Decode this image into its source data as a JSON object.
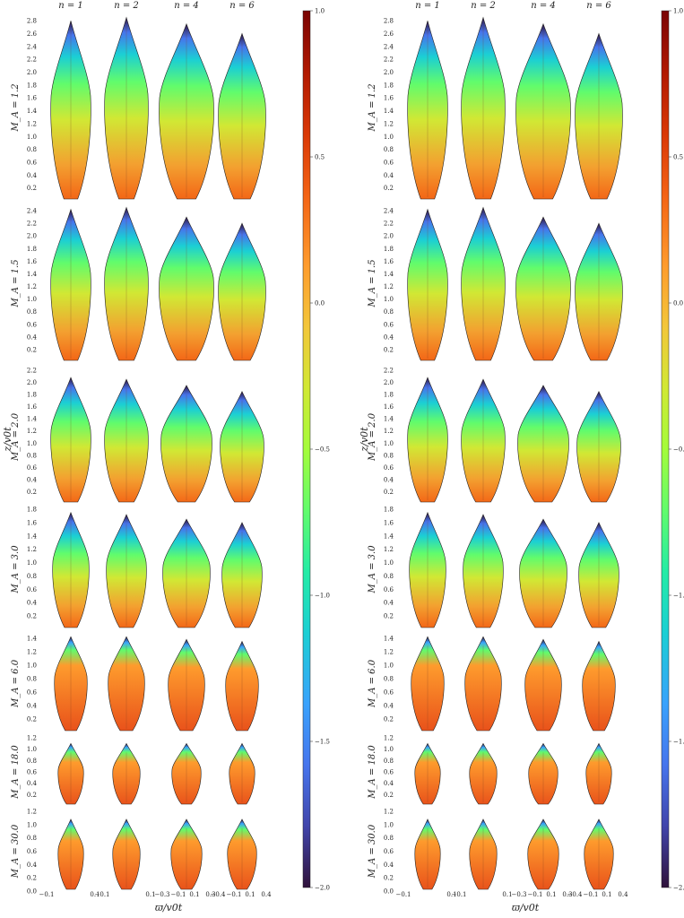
{
  "figure": {
    "column_labels": [
      "n = 1",
      "n = 2",
      "n = 4",
      "n = 6"
    ],
    "row_labels": [
      "M_A = 1.2",
      "M_A = 1.5",
      "M_A = 2.0",
      "M_A = 3.0",
      "M_A = 6.0",
      "M_A = 18.0",
      "M_A = 30.0"
    ],
    "ylabel": "z/v0t",
    "xlabel": "ϖ/v0t",
    "x_tick_groups": [
      [
        "−0.1",
        "0.1"
      ],
      [
        "−0.1",
        "0.1"
      ],
      [
        "−0.3",
        "−0.1",
        "0.1",
        "0.3"
      ],
      [
        "−0.4",
        "−0.1",
        "0.1",
        "0.4"
      ]
    ],
    "colorbar": {
      "ticks": [
        "1.0",
        "0.5",
        "0.0",
        "−0.5",
        "−1.0",
        "−1.5",
        "−2.0"
      ],
      "range": [
        -2.0,
        1.0
      ],
      "colormap": "turbo"
    }
  },
  "chart_data": [
    {
      "type": "heatmap",
      "panel": "left",
      "title": "",
      "xlabel": "ϖ/v0t",
      "ylabel": "z/v0t",
      "columns": [
        "n = 1",
        "n = 2",
        "n = 4",
        "n = 6"
      ],
      "rows": [
        {
          "label": "M_A = 1.2",
          "ylim": [
            0,
            2.9
          ],
          "y_ticks": [
            "0.2",
            "0.4",
            "0.6",
            "0.8",
            "1.0",
            "1.2",
            "1.4",
            "1.6",
            "1.8",
            "2.0",
            "2.2",
            "2.4",
            "2.6",
            "2.8"
          ],
          "tip_heights": [
            2.8,
            2.85,
            2.75,
            2.6
          ]
        },
        {
          "label": "M_A = 1.5",
          "ylim": [
            0,
            2.5
          ],
          "y_ticks": [
            "0.2",
            "0.4",
            "0.6",
            "0.8",
            "1.0",
            "1.2",
            "1.4",
            "1.6",
            "1.8",
            "2.0",
            "2.2",
            "2.4"
          ],
          "tip_heights": [
            2.42,
            2.45,
            2.3,
            2.2
          ]
        },
        {
          "label": "M_A = 2.0",
          "ylim": [
            0,
            2.2
          ],
          "y_ticks": [
            "0.2",
            "0.4",
            "0.6",
            "0.8",
            "1.0",
            "1.2",
            "1.4",
            "1.6",
            "1.8",
            "2.0",
            "2.2"
          ],
          "tip_heights": [
            2.08,
            2.05,
            1.95,
            1.85
          ]
        },
        {
          "label": "M_A = 3.0",
          "ylim": [
            0,
            1.8
          ],
          "y_ticks": [
            "0.2",
            "0.4",
            "0.6",
            "0.8",
            "1.0",
            "1.2",
            "1.4",
            "1.6",
            "1.8"
          ],
          "tip_heights": [
            1.75,
            1.72,
            1.65,
            1.6
          ]
        },
        {
          "label": "M_A = 6.0",
          "ylim": [
            0,
            1.45
          ],
          "y_ticks": [
            "0.2",
            "0.4",
            "0.6",
            "0.8",
            "1.0",
            "1.2",
            "1.4"
          ],
          "tip_heights": [
            1.42,
            1.42,
            1.38,
            1.35
          ]
        },
        {
          "label": "M_A = 18.0",
          "ylim": [
            0,
            1.2
          ],
          "y_ticks": [
            "0.2",
            "0.4",
            "0.6",
            "0.8",
            "1.0",
            "1.2"
          ],
          "tip_heights": [
            1.1,
            1.1,
            1.1,
            1.1
          ]
        },
        {
          "label": "M_A = 30.0",
          "ylim": [
            0,
            1.2
          ],
          "y_ticks": [
            "0.0",
            "0.2",
            "0.4",
            "0.6",
            "0.8",
            "1.0",
            "1.2"
          ],
          "tip_heights": [
            1.08,
            1.08,
            1.08,
            1.08
          ]
        }
      ],
      "colorbar_range": [
        -2.0,
        1.0
      ]
    },
    {
      "type": "heatmap",
      "panel": "right",
      "title": "",
      "xlabel": "ϖ/v0t",
      "ylabel": "z/v0t",
      "columns": [
        "n = 1",
        "n = 2",
        "n = 4",
        "n = 6"
      ],
      "rows": [
        {
          "label": "M_A = 1.2",
          "ylim": [
            0,
            2.9
          ],
          "y_ticks": [
            "0.2",
            "0.4",
            "0.6",
            "0.8",
            "1.0",
            "1.2",
            "1.4",
            "1.6",
            "1.8",
            "2.0",
            "2.2",
            "2.4",
            "2.6",
            "2.8"
          ],
          "tip_heights": [
            2.8,
            2.85,
            2.75,
            2.6
          ]
        },
        {
          "label": "M_A = 1.5",
          "ylim": [
            0,
            2.5
          ],
          "y_ticks": [
            "0.2",
            "0.4",
            "0.6",
            "0.8",
            "1.0",
            "1.2",
            "1.4",
            "1.6",
            "1.8",
            "2.0",
            "2.2",
            "2.4"
          ],
          "tip_heights": [
            2.42,
            2.45,
            2.3,
            2.2
          ]
        },
        {
          "label": "M_A = 2.0",
          "ylim": [
            0,
            2.2
          ],
          "y_ticks": [
            "0.2",
            "0.4",
            "0.6",
            "0.8",
            "1.0",
            "1.2",
            "1.4",
            "1.6",
            "1.8",
            "2.0",
            "2.2"
          ],
          "tip_heights": [
            2.08,
            2.05,
            1.95,
            1.85
          ]
        },
        {
          "label": "M_A = 3.0",
          "ylim": [
            0,
            1.8
          ],
          "y_ticks": [
            "0.2",
            "0.4",
            "0.6",
            "0.8",
            "1.0",
            "1.2",
            "1.4",
            "1.6",
            "1.8"
          ],
          "tip_heights": [
            1.75,
            1.72,
            1.65,
            1.6
          ]
        },
        {
          "label": "M_A = 6.0",
          "ylim": [
            0,
            1.45
          ],
          "y_ticks": [
            "0.2",
            "0.4",
            "0.6",
            "0.8",
            "1.0",
            "1.2",
            "1.4"
          ],
          "tip_heights": [
            1.42,
            1.42,
            1.38,
            1.35
          ]
        },
        {
          "label": "M_A = 18.0",
          "ylim": [
            0,
            1.2
          ],
          "y_ticks": [
            "0.2",
            "0.4",
            "0.6",
            "0.8",
            "1.0",
            "1.2"
          ],
          "tip_heights": [
            1.1,
            1.1,
            1.1,
            1.1
          ]
        },
        {
          "label": "M_A = 30.0",
          "ylim": [
            0,
            1.2
          ],
          "y_ticks": [
            "0.0",
            "0.2",
            "0.4",
            "0.6",
            "0.8",
            "1.0",
            "1.2"
          ],
          "tip_heights": [
            1.08,
            1.08,
            1.08,
            1.08
          ]
        }
      ],
      "colorbar_range": [
        -2.0,
        1.0
      ]
    }
  ]
}
